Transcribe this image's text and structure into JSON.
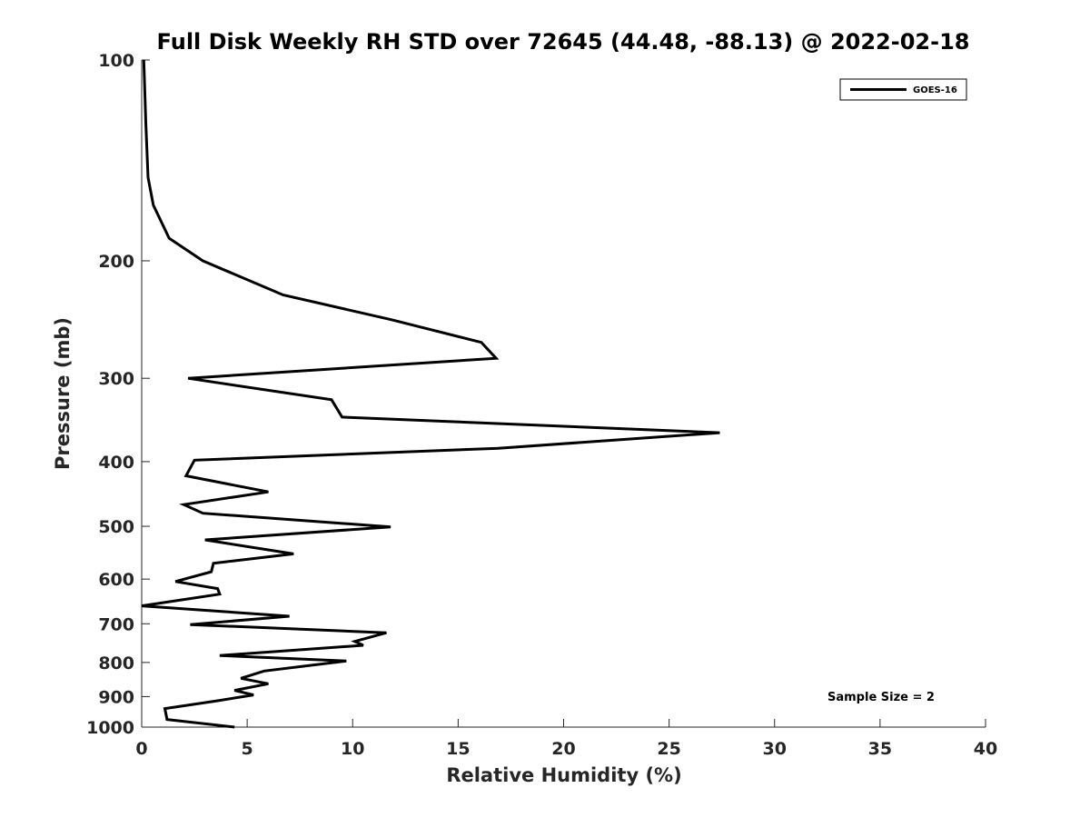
{
  "chart_data": {
    "type": "line",
    "title": "Full Disk Weekly RH STD over 72645 (44.48, -88.13) @ 2022-02-18",
    "xlabel": "Relative Humidity (%)",
    "ylabel": "Pressure (mb)",
    "xlim": [
      0,
      40
    ],
    "ylim": [
      100,
      1000
    ],
    "y_scale": "log",
    "y_reversed": true,
    "x_ticks": [
      "0",
      "5",
      "10",
      "15",
      "20",
      "25",
      "30",
      "35",
      "40"
    ],
    "y_ticks": [
      "100",
      "200",
      "300",
      "400",
      "500",
      "600",
      "700",
      "800",
      "900",
      "1000"
    ],
    "legend": {
      "location": "top-right",
      "entries": [
        "GOES-16"
      ]
    },
    "annotation": "Sample Size = 2",
    "series": [
      {
        "name": "GOES-16",
        "color": "#000000",
        "points": [
          [
            0.1,
            100
          ],
          [
            0.2,
            125
          ],
          [
            0.3,
            150
          ],
          [
            0.55,
            165
          ],
          [
            1.3,
            185
          ],
          [
            2.9,
            200
          ],
          [
            6.7,
            225
          ],
          [
            11.8,
            245
          ],
          [
            16.1,
            265
          ],
          [
            16.8,
            280
          ],
          [
            2.2,
            300
          ],
          [
            9.0,
            323
          ],
          [
            9.5,
            343
          ],
          [
            27.4,
            362
          ],
          [
            16.9,
            382
          ],
          [
            2.5,
            398
          ],
          [
            2.1,
            420
          ],
          [
            6.0,
            444
          ],
          [
            2.0,
            464
          ],
          [
            2.9,
            478
          ],
          [
            11.8,
            501
          ],
          [
            3.0,
            524
          ],
          [
            7.2,
            550
          ],
          [
            3.4,
            568
          ],
          [
            3.3,
            585
          ],
          [
            1.6,
            605
          ],
          [
            3.6,
            620
          ],
          [
            3.7,
            632
          ],
          [
            0.0,
            658
          ],
          [
            7.0,
            682
          ],
          [
            2.3,
            702
          ],
          [
            11.6,
            722
          ],
          [
            10.1,
            744
          ],
          [
            10.5,
            754
          ],
          [
            3.7,
            781
          ],
          [
            9.7,
            796
          ],
          [
            5.8,
            824
          ],
          [
            4.7,
            845
          ],
          [
            6.0,
            861
          ],
          [
            4.4,
            881
          ],
          [
            5.3,
            895
          ],
          [
            3.6,
            913
          ],
          [
            1.1,
            938
          ],
          [
            1.2,
            974
          ],
          [
            4.4,
            1000
          ]
        ]
      }
    ]
  }
}
